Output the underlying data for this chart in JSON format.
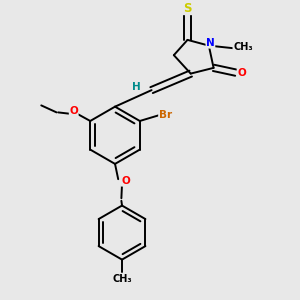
{
  "bg_color": "#e8e8e8",
  "bond_color": "#000000",
  "atom_colors": {
    "S": "#cccc00",
    "N": "#0000ff",
    "O": "#ff0000",
    "Br": "#cc6600",
    "H": "#008b8b",
    "C": "#000000"
  },
  "lw": 1.4,
  "fs": 7.5
}
